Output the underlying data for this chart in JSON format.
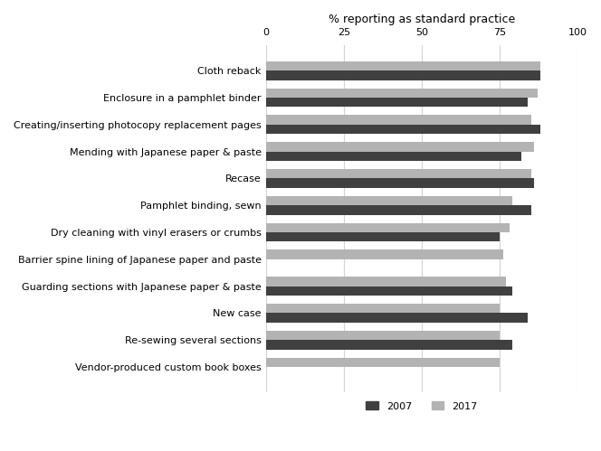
{
  "categories": [
    "Cloth reback",
    "Enclosure in a pamphlet binder",
    "Creating/inserting photocopy replacement pages",
    "Mending with Japanese paper & paste",
    "Recase",
    "Pamphlet binding, sewn",
    "Dry cleaning with vinyl erasers or crumbs",
    "Barrier spine lining of Japanese paper and paste",
    "Guarding sections with Japanese paper & paste",
    "New case",
    "Re-sewing several sections",
    "Vendor-produced custom book boxes"
  ],
  "values_2007": [
    88,
    84,
    88,
    82,
    86,
    85,
    75,
    0,
    79,
    84,
    79,
    0
  ],
  "values_2017": [
    88,
    87,
    85,
    86,
    85,
    79,
    78,
    76,
    77,
    75,
    75,
    75
  ],
  "color_2007": "#404040",
  "color_2017": "#b3b3b3",
  "xlabel": "% reporting as standard practice",
  "xlim": [
    0,
    100
  ],
  "xticks": [
    0,
    25,
    50,
    75,
    100
  ],
  "legend_labels": [
    "2007",
    "2017"
  ],
  "bar_height": 0.35,
  "figsize": [
    6.64,
    4.99
  ],
  "dpi": 100
}
